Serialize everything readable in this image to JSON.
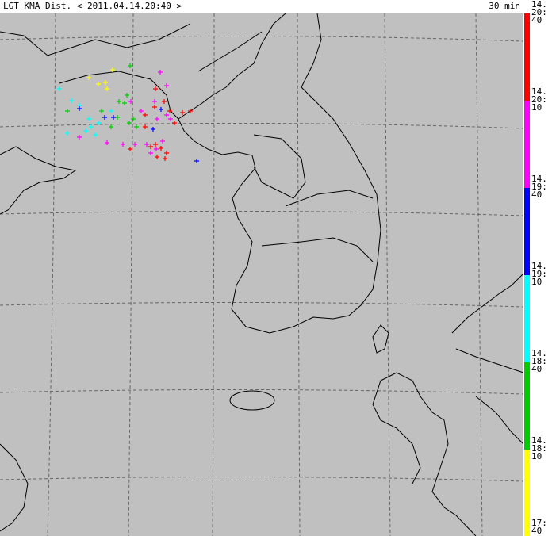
{
  "header": {
    "title": "LGT KMA Dist. < 2011.04.14.20:40 >",
    "interval": "30 min"
  },
  "legend": [
    {
      "lines": [
        "14.",
        "20:",
        "40"
      ],
      "color": "#ff0000"
    },
    {
      "lines": [
        "14.",
        "20:",
        "10"
      ],
      "color": "#ff00ff"
    },
    {
      "lines": [
        "14.",
        "19:",
        "40"
      ],
      "color": "#0000ff"
    },
    {
      "lines": [
        "14.",
        "19:",
        "10"
      ],
      "color": "#00ffff"
    },
    {
      "lines": [
        "14.",
        "18:",
        "40"
      ],
      "color": "#00cc00"
    },
    {
      "lines": [
        "14.",
        "18:",
        "10"
      ],
      "color": "#ffff00"
    },
    {
      "lines": [
        "17:",
        "40"
      ]
    }
  ]
}
